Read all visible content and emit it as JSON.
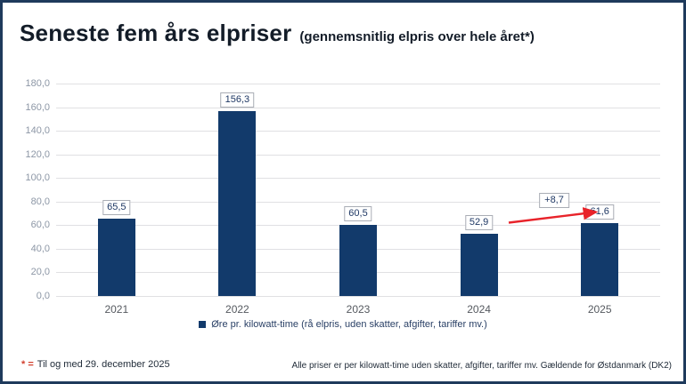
{
  "header": {
    "title": "Seneste fem års elpriser",
    "subtitle": "(gennemsnitlig elpris over hele året*)"
  },
  "chart_data": {
    "type": "bar",
    "title": "Seneste fem års elpriser (gennemsnitlig elpris over hele året*)",
    "categories": [
      "2021",
      "2022",
      "2023",
      "2024",
      "2025"
    ],
    "values": [
      65.5,
      156.3,
      60.5,
      52.9,
      61.6
    ],
    "value_labels": [
      "65,5",
      "156,3",
      "60,5",
      "52,9",
      "61,6"
    ],
    "xlabel": "",
    "ylabel": "",
    "ylim": [
      0,
      180
    ],
    "ytick_step": 20,
    "ytick_labels": [
      "0,0",
      "20,0",
      "40,0",
      "60,0",
      "80,0",
      "100,0",
      "120,0",
      "140,0",
      "160,0",
      "180,0"
    ],
    "grid": true,
    "legend_position": "bottom",
    "legend": [
      "Øre pr. kilowatt-time (rå elpris, uden skatter, afgifter, tariffer mv.)"
    ],
    "bar_color": "#123a6b",
    "annotation": {
      "label": "+8,7",
      "from_category": "2024",
      "to_category": "2025",
      "arrow_color": "#e8232a"
    }
  },
  "legend": {
    "label": "Øre pr. kilowatt-time (rå elpris, uden skatter, afgifter, tariffer mv.)"
  },
  "footer": {
    "left_prefix": "* =",
    "left_text": "Til og med 29. december 2025",
    "right_text": "Alle priser er per kilowatt-time uden skatter, afgifter, tariffer mv. Gældende for Østdanmark (DK2)"
  },
  "colors": {
    "bar": "#123a6b",
    "border": "#1e3a5c",
    "arrow": "#e8232a",
    "grid": "#e0e0e3",
    "value_text": "#1f3864"
  }
}
